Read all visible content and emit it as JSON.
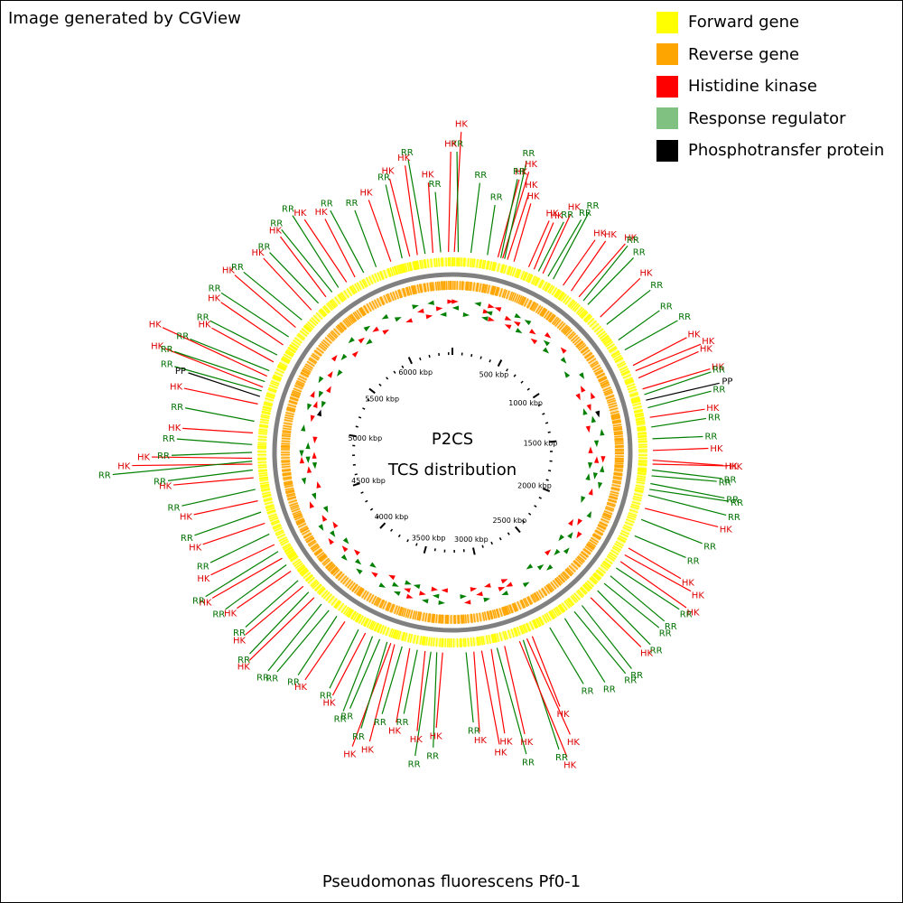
{
  "header": {
    "credit": "Image generated by CGView"
  },
  "legend": {
    "items": [
      {
        "label": "Forward gene",
        "color": "#ffff00"
      },
      {
        "label": "Reverse gene",
        "color": "#ffa500"
      },
      {
        "label": "Histidine kinase",
        "color": "#ff0000"
      },
      {
        "label": "Response regulator",
        "color": "#80c080"
      },
      {
        "label": "Phosphotransfer protein",
        "color": "#000000"
      }
    ]
  },
  "map": {
    "title_line1": "P2CS",
    "title_line2": "TCS distribution",
    "genome_length_kbp": 6440,
    "tick_interval_kbp": 500,
    "tick_labels": [
      "500 kbp",
      "1000 kbp",
      "1500 kbp",
      "2000 kbp",
      "2500 kbp",
      "3000 kbp",
      "3500 kbp",
      "4000 kbp",
      "4500 kbp",
      "5000 kbp",
      "5500 kbp",
      "6000 kbp"
    ],
    "colors": {
      "hk": "#ff0000",
      "rr": "#008000",
      "pp": "#000000",
      "hk_text": "#dd0000",
      "rr_text": "#007000",
      "backbone": "#808080"
    },
    "features": [
      {
        "pos_kbp": 10,
        "label": "HK",
        "cls": "hk",
        "len": 1.0
      },
      {
        "pos_kbp": 30,
        "label": "RR",
        "cls": "rr",
        "len": 0.8
      },
      {
        "pos_kbp": 95,
        "label": "RR",
        "cls": "rr",
        "len": 0.5
      },
      {
        "pos_kbp": 180,
        "label": "RR",
        "cls": "rr",
        "len": 0.3
      },
      {
        "pos_kbp": 235,
        "label": "HK",
        "cls": "hk",
        "len": 0.6
      },
      {
        "pos_kbp": 250,
        "label": "RR",
        "cls": "rr",
        "len": 0.6
      },
      {
        "pos_kbp": 260,
        "label": "HK",
        "cls": "hk",
        "len": 0.7
      },
      {
        "pos_kbp": 270,
        "label": "RR",
        "cls": "rr",
        "len": 0.8
      },
      {
        "pos_kbp": 285,
        "label": "HK",
        "cls": "hk",
        "len": 0.5
      },
      {
        "pos_kbp": 320,
        "label": "HK",
        "cls": "hk",
        "len": 0.4
      },
      {
        "pos_kbp": 400,
        "label": "HK",
        "cls": "hk",
        "len": 0.3
      },
      {
        "pos_kbp": 430,
        "label": "HK",
        "cls": "hk",
        "len": 0.3
      },
      {
        "pos_kbp": 455,
        "label": "RR",
        "cls": "rr",
        "len": 0.35
      },
      {
        "pos_kbp": 480,
        "label": "HK",
        "cls": "hk",
        "len": 0.45
      },
      {
        "pos_kbp": 510,
        "label": "RR",
        "cls": "rr",
        "len": 0.45
      },
      {
        "pos_kbp": 540,
        "label": "RR",
        "cls": "rr",
        "len": 0.55
      },
      {
        "pos_kbp": 600,
        "label": "HK",
        "cls": "hk",
        "len": 0.35
      },
      {
        "pos_kbp": 650,
        "label": "HK",
        "cls": "hk",
        "len": 0.4
      },
      {
        "pos_kbp": 700,
        "label": "HK",
        "cls": "hk",
        "len": 0.5
      },
      {
        "pos_kbp": 730,
        "label": "RR",
        "cls": "rr",
        "len": 0.5
      },
      {
        "pos_kbp": 760,
        "label": "RR",
        "cls": "rr",
        "len": 0.45
      },
      {
        "pos_kbp": 850,
        "label": "HK",
        "cls": "hk",
        "len": 0.35
      },
      {
        "pos_kbp": 900,
        "label": "RR",
        "cls": "rr",
        "len": 0.35
      },
      {
        "pos_kbp": 1000,
        "label": "RR",
        "cls": "rr",
        "len": 0.3
      },
      {
        "pos_kbp": 1060,
        "label": "RR",
        "cls": "rr",
        "len": 0.4
      },
      {
        "pos_kbp": 1150,
        "label": "HK",
        "cls": "hk",
        "len": 0.4
      },
      {
        "pos_kbp": 1180,
        "label": "HK",
        "cls": "hk",
        "len": 0.5
      },
      {
        "pos_kbp": 1220,
        "label": "HK",
        "cls": "hk",
        "len": 0.45
      },
      {
        "pos_kbp": 1280,
        "label": "HK",
        "cls": "hk",
        "len": 0.5
      },
      {
        "pos_kbp": 1310,
        "label": "RR",
        "cls": "rr",
        "len": 0.5
      },
      {
        "pos_kbp": 1340,
        "label": "PP",
        "cls": "pp",
        "len": 0.55
      },
      {
        "pos_kbp": 1380,
        "label": "RR",
        "cls": "rr",
        "len": 0.45
      },
      {
        "pos_kbp": 1430,
        "label": "HK",
        "cls": "hk",
        "len": 0.35
      },
      {
        "pos_kbp": 1480,
        "label": "RR",
        "cls": "rr",
        "len": 0.35
      },
      {
        "pos_kbp": 1540,
        "label": "RR",
        "cls": "rr",
        "len": 0.3
      },
      {
        "pos_kbp": 1600,
        "label": "HK",
        "cls": "hk",
        "len": 0.35
      },
      {
        "pos_kbp": 1650,
        "label": "HK",
        "cls": "hk",
        "len": 0.5
      },
      {
        "pos_kbp": 1670,
        "label": "HK",
        "cls": "hk",
        "len": 0.55
      },
      {
        "pos_kbp": 1700,
        "label": "RR",
        "cls": "rr",
        "len": 0.5
      },
      {
        "pos_kbp": 1730,
        "label": "RR",
        "cls": "rr",
        "len": 0.45
      },
      {
        "pos_kbp": 1770,
        "label": "RR",
        "cls": "rr",
        "len": 0.55
      },
      {
        "pos_kbp": 1800,
        "label": "RR",
        "cls": "rr",
        "len": 0.6
      },
      {
        "pos_kbp": 1830,
        "label": "RR",
        "cls": "rr",
        "len": 0.6
      },
      {
        "pos_kbp": 1900,
        "label": "HK",
        "cls": "hk",
        "len": 0.55
      },
      {
        "pos_kbp": 1960,
        "label": "RR",
        "cls": "rr",
        "len": 0.45
      },
      {
        "pos_kbp": 2050,
        "label": "RR",
        "cls": "rr",
        "len": 0.35
      },
      {
        "pos_kbp": 2120,
        "label": "HK",
        "cls": "hk",
        "len": 0.4
      },
      {
        "pos_kbp": 2160,
        "label": "HK",
        "cls": "hk",
        "len": 0.55
      },
      {
        "pos_kbp": 2200,
        "label": "HK",
        "cls": "hk",
        "len": 0.6
      },
      {
        "pos_kbp": 2240,
        "label": "RR",
        "cls": "rr",
        "len": 0.55
      },
      {
        "pos_kbp": 2290,
        "label": "RR",
        "cls": "rr",
        "len": 0.5
      },
      {
        "pos_kbp": 2340,
        "label": "RR",
        "cls": "rr",
        "len": 0.5
      },
      {
        "pos_kbp": 2390,
        "label": "RR",
        "cls": "rr",
        "len": 0.55
      },
      {
        "pos_kbp": 2440,
        "label": "HK",
        "cls": "hk",
        "len": 0.5
      },
      {
        "pos_kbp": 2500,
        "label": "RR",
        "cls": "rr",
        "len": 0.6
      },
      {
        "pos_kbp": 2550,
        "label": "RR",
        "cls": "rr",
        "len": 0.6
      },
      {
        "pos_kbp": 2610,
        "label": "RR",
        "cls": "rr",
        "len": 0.55
      },
      {
        "pos_kbp": 2700,
        "label": "RR",
        "cls": "rr",
        "len": 0.45
      },
      {
        "pos_kbp": 2800,
        "label": "HK",
        "cls": "hk",
        "len": 0.55
      },
      {
        "pos_kbp": 2830,
        "label": "HK",
        "cls": "hk",
        "len": 0.85
      },
      {
        "pos_kbp": 2850,
        "label": "RR",
        "cls": "rr",
        "len": 0.95
      },
      {
        "pos_kbp": 2870,
        "label": "HK",
        "cls": "hk",
        "len": 1.05
      },
      {
        "pos_kbp": 2950,
        "label": "HK",
        "cls": "hk",
        "len": 0.7
      },
      {
        "pos_kbp": 2990,
        "label": "RR",
        "cls": "rr",
        "len": 0.9
      },
      {
        "pos_kbp": 3020,
        "label": "HK",
        "cls": "hk",
        "len": 0.65
      },
      {
        "pos_kbp": 3070,
        "label": "HK",
        "cls": "hk",
        "len": 0.75
      },
      {
        "pos_kbp": 3110,
        "label": "HK",
        "cls": "hk",
        "len": 0.6
      },
      {
        "pos_kbp": 3150,
        "label": "RR",
        "cls": "rr",
        "len": 0.5
      },
      {
        "pos_kbp": 3270,
        "label": "HK",
        "cls": "hk",
        "len": 0.55
      },
      {
        "pos_kbp": 3300,
        "label": "RR",
        "cls": "rr",
        "len": 0.75
      },
      {
        "pos_kbp": 3330,
        "label": "RR",
        "cls": "rr",
        "len": 0.85
      },
      {
        "pos_kbp": 3360,
        "label": "HK",
        "cls": "hk",
        "len": 0.6
      },
      {
        "pos_kbp": 3400,
        "label": "RR",
        "cls": "rr",
        "len": 0.45
      },
      {
        "pos_kbp": 3440,
        "label": "HK",
        "cls": "hk",
        "len": 0.55
      },
      {
        "pos_kbp": 3480,
        "label": "RR",
        "cls": "rr",
        "len": 0.5
      },
      {
        "pos_kbp": 3520,
        "label": "HK",
        "cls": "hk",
        "len": 0.8
      },
      {
        "pos_kbp": 3540,
        "label": "HK",
        "cls": "hk",
        "len": 0.9
      },
      {
        "pos_kbp": 3560,
        "label": "RR",
        "cls": "rr",
        "len": 0.7
      },
      {
        "pos_kbp": 3600,
        "label": "RR",
        "cls": "rr",
        "len": 0.55
      },
      {
        "pos_kbp": 3640,
        "label": "RR",
        "cls": "rr",
        "len": 0.6
      },
      {
        "pos_kbp": 3680,
        "label": "HK",
        "cls": "hk",
        "len": 0.5
      },
      {
        "pos_kbp": 3720,
        "label": "RR",
        "cls": "rr",
        "len": 0.45
      },
      {
        "pos_kbp": 3800,
        "label": "HK",
        "cls": "hk",
        "len": 0.5
      },
      {
        "pos_kbp": 3850,
        "label": "RR",
        "cls": "rr",
        "len": 0.5
      },
      {
        "pos_kbp": 3900,
        "label": "RR",
        "cls": "rr",
        "len": 0.6
      },
      {
        "pos_kbp": 3950,
        "label": "RR",
        "cls": "rr",
        "len": 0.65
      },
      {
        "pos_kbp": 4000,
        "label": "HK",
        "cls": "hk",
        "len": 0.7
      },
      {
        "pos_kbp": 4040,
        "label": "RR",
        "cls": "rr",
        "len": 0.65
      },
      {
        "pos_kbp": 4080,
        "label": "HK",
        "cls": "hk",
        "len": 0.55
      },
      {
        "pos_kbp": 4120,
        "label": "RR",
        "cls": "rr",
        "len": 0.5
      },
      {
        "pos_kbp": 4180,
        "label": "HK",
        "cls": "hk",
        "len": 0.45
      },
      {
        "pos_kbp": 4220,
        "label": "RR",
        "cls": "rr",
        "len": 0.55
      },
      {
        "pos_kbp": 4260,
        "label": "HK",
        "cls": "hk",
        "len": 0.6
      },
      {
        "pos_kbp": 4300,
        "label": "RR",
        "cls": "rr",
        "len": 0.65
      },
      {
        "pos_kbp": 4340,
        "label": "HK",
        "cls": "hk",
        "len": 0.5
      },
      {
        "pos_kbp": 4400,
        "label": "RR",
        "cls": "rr",
        "len": 0.45
      },
      {
        "pos_kbp": 4460,
        "label": "HK",
        "cls": "hk",
        "len": 0.45
      },
      {
        "pos_kbp": 4520,
        "label": "RR",
        "cls": "rr",
        "len": 0.5
      },
      {
        "pos_kbp": 4580,
        "label": "HK",
        "cls": "hk",
        "len": 0.45
      },
      {
        "pos_kbp": 4640,
        "label": "RR",
        "cls": "rr",
        "len": 0.55
      },
      {
        "pos_kbp": 4700,
        "label": "HK",
        "cls": "hk",
        "len": 0.6
      },
      {
        "pos_kbp": 4740,
        "label": "RR",
        "cls": "rr",
        "len": 0.65
      },
      {
        "pos_kbp": 4770,
        "label": "HK",
        "cls": "hk",
        "len": 1.0
      },
      {
        "pos_kbp": 4785,
        "label": "RR",
        "cls": "rr",
        "len": 1.2
      },
      {
        "pos_kbp": 4800,
        "label": "HK",
        "cls": "hk",
        "len": 0.8
      },
      {
        "pos_kbp": 4830,
        "label": "RR",
        "cls": "rr",
        "len": 0.6
      },
      {
        "pos_kbp": 4870,
        "label": "RR",
        "cls": "rr",
        "len": 0.55
      },
      {
        "pos_kbp": 4930,
        "label": "HK",
        "cls": "hk",
        "len": 0.5
      },
      {
        "pos_kbp": 4990,
        "label": "RR",
        "cls": "rr",
        "len": 0.5
      },
      {
        "pos_kbp": 5080,
        "label": "HK",
        "cls": "hk",
        "len": 0.55
      },
      {
        "pos_kbp": 5120,
        "label": "PP",
        "cls": "pp",
        "len": 0.55
      },
      {
        "pos_kbp": 5150,
        "label": "RR",
        "cls": "rr",
        "len": 0.7
      },
      {
        "pos_kbp": 5170,
        "label": "HK",
        "cls": "hk",
        "len": 0.85
      },
      {
        "pos_kbp": 5200,
        "label": "RR",
        "cls": "rr",
        "len": 0.75
      },
      {
        "pos_kbp": 5230,
        "label": "HK",
        "cls": "hk",
        "len": 0.95
      },
      {
        "pos_kbp": 5260,
        "label": "RR",
        "cls": "rr",
        "len": 0.65
      },
      {
        "pos_kbp": 5310,
        "label": "HK",
        "cls": "hk",
        "len": 0.5
      },
      {
        "pos_kbp": 5350,
        "label": "RR",
        "cls": "rr",
        "len": 0.55
      },
      {
        "pos_kbp": 5410,
        "label": "HK",
        "cls": "hk",
        "len": 0.55
      },
      {
        "pos_kbp": 5460,
        "label": "RR",
        "cls": "rr",
        "len": 0.6
      },
      {
        "pos_kbp": 5520,
        "label": "HK",
        "cls": "hk",
        "len": 0.6
      },
      {
        "pos_kbp": 5570,
        "label": "RR",
        "cls": "rr",
        "len": 0.55
      },
      {
        "pos_kbp": 5640,
        "label": "HK",
        "cls": "hk",
        "len": 0.5
      },
      {
        "pos_kbp": 5690,
        "label": "RR",
        "cls": "rr",
        "len": 0.5
      },
      {
        "pos_kbp": 5740,
        "label": "HK",
        "cls": "hk",
        "len": 0.55
      },
      {
        "pos_kbp": 5780,
        "label": "RR",
        "cls": "rr",
        "len": 0.6
      },
      {
        "pos_kbp": 5820,
        "label": "RR",
        "cls": "rr",
        "len": 0.65
      },
      {
        "pos_kbp": 5870,
        "label": "HK",
        "cls": "hk",
        "len": 0.55
      },
      {
        "pos_kbp": 5920,
        "label": "HK",
        "cls": "hk",
        "len": 0.45
      },
      {
        "pos_kbp": 5970,
        "label": "RR",
        "cls": "rr",
        "len": 0.5
      },
      {
        "pos_kbp": 6040,
        "label": "RR",
        "cls": "rr",
        "len": 0.4
      },
      {
        "pos_kbp": 6120,
        "label": "HK",
        "cls": "hk",
        "len": 0.45
      },
      {
        "pos_kbp": 6180,
        "label": "RR",
        "cls": "rr",
        "len": 0.55
      },
      {
        "pos_kbp": 6220,
        "label": "HK",
        "cls": "hk",
        "len": 0.6
      },
      {
        "pos_kbp": 6260,
        "label": "HK",
        "cls": "hk",
        "len": 0.7
      },
      {
        "pos_kbp": 6300,
        "label": "RR",
        "cls": "rr",
        "len": 0.75
      },
      {
        "pos_kbp": 6340,
        "label": "HK",
        "cls": "hk",
        "len": 0.5
      },
      {
        "pos_kbp": 6380,
        "label": "RR",
        "cls": "rr",
        "len": 0.4
      },
      {
        "pos_kbp": 6420,
        "label": "HK",
        "cls": "hk",
        "len": 0.8
      }
    ]
  },
  "footer": {
    "organism": "Pseudomonas fluorescens Pf0-1"
  }
}
